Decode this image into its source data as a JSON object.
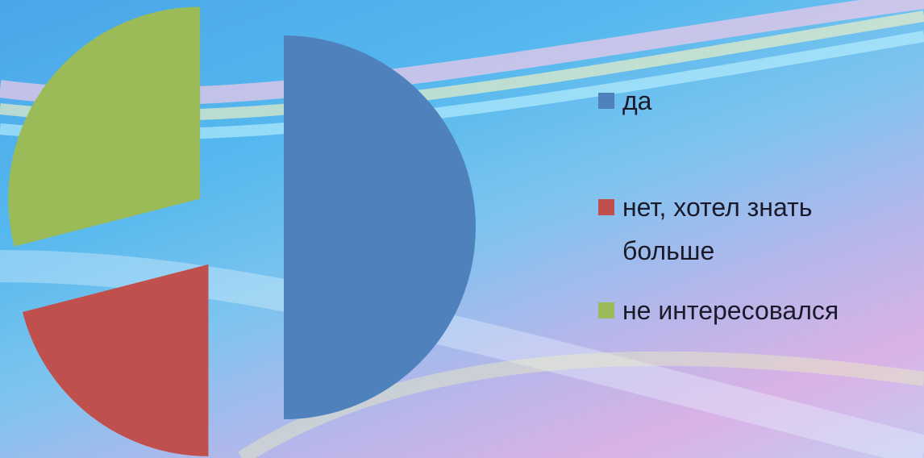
{
  "chart_data": {
    "type": "pie",
    "exploded": true,
    "categories": [
      "да",
      "нет, хотел знать больше",
      "не интересовался"
    ],
    "values": [
      50,
      21,
      29
    ],
    "colors": [
      "#4f81bd",
      "#c0504d",
      "#9bbb59"
    ],
    "legend": "right"
  }
}
